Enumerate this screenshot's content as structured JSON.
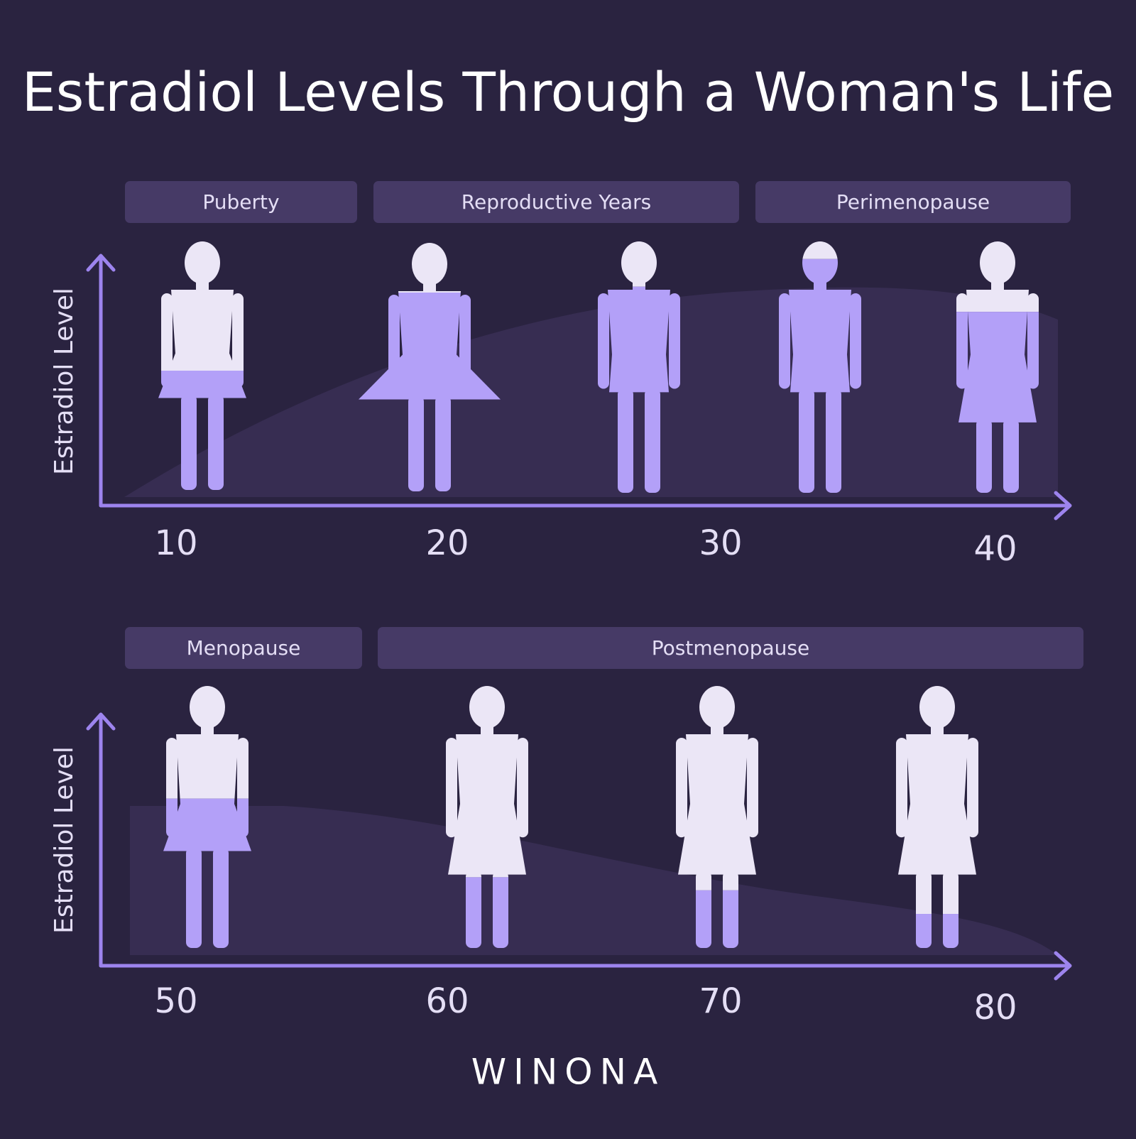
{
  "title": "Estradiol Levels Through a Woman's Life",
  "panels": [
    {
      "y_label": "Estradiol Level",
      "phases": [
        "Puberty",
        "Reproductive Years",
        "Perimenopause"
      ],
      "ages": [
        "10",
        "20",
        "30",
        "40"
      ]
    },
    {
      "y_label": "Estradiol Level",
      "phases": [
        "Menopause",
        "Postmenopause"
      ],
      "ages": [
        "50",
        "60",
        "70",
        "80"
      ]
    }
  ],
  "brand": "WINONA"
}
